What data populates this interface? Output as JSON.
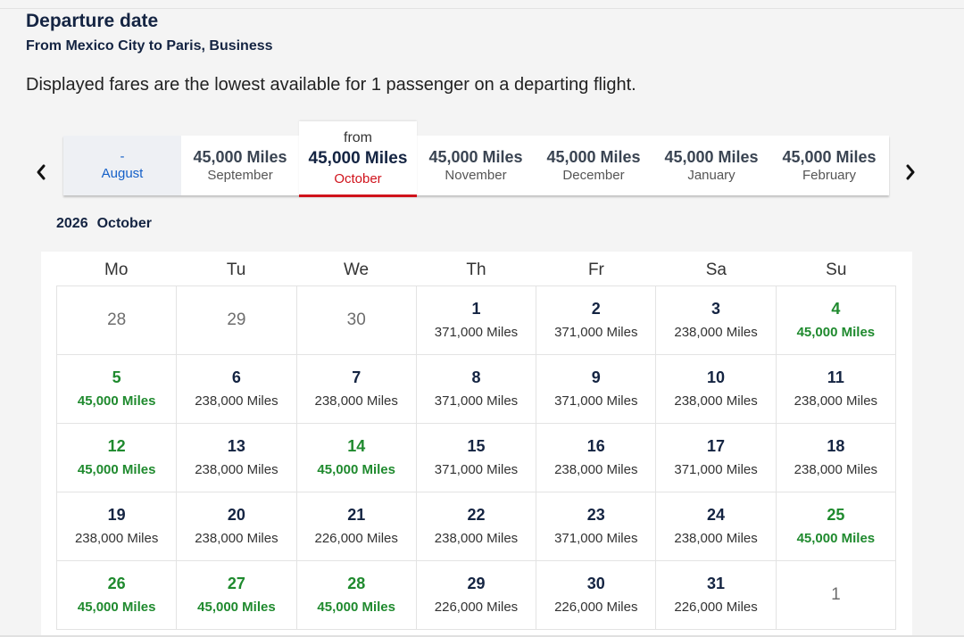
{
  "header": {
    "title": "Departure date",
    "subtitle": "From Mexico City to Paris, Business",
    "info": "Displayed fares are the lowest available for 1 passenger on a departing flight."
  },
  "icons": {
    "prev": "chevron-left-icon",
    "next": "chevron-right-icon"
  },
  "colors": {
    "accent_red": "#d0121b",
    "lowest_fare_green": "#1f8a2e",
    "navy": "#142442",
    "link_blue": "#1560c8"
  },
  "months": [
    {
      "price": "-",
      "name": "August",
      "state": "empty"
    },
    {
      "price": "45,000 Miles",
      "name": "September",
      "state": "normal"
    },
    {
      "prefix": "from",
      "price": "45,000 Miles",
      "name": "October",
      "state": "selected"
    },
    {
      "price": "45,000 Miles",
      "name": "November",
      "state": "normal"
    },
    {
      "price": "45,000 Miles",
      "name": "December",
      "state": "normal"
    },
    {
      "price": "45,000 Miles",
      "name": "January",
      "state": "normal"
    },
    {
      "price": "45,000 Miles",
      "name": "February",
      "state": "normal"
    }
  ],
  "calendar": {
    "year": "2026",
    "month": "October",
    "weekdays": [
      "Mo",
      "Tu",
      "We",
      "Th",
      "Fr",
      "Sa",
      "Su"
    ],
    "days": [
      {
        "day": "28",
        "fare": "",
        "type": "outside"
      },
      {
        "day": "29",
        "fare": "",
        "type": "outside"
      },
      {
        "day": "30",
        "fare": "",
        "type": "outside"
      },
      {
        "day": "1",
        "fare": "371,000 Miles",
        "type": "normal"
      },
      {
        "day": "2",
        "fare": "371,000 Miles",
        "type": "normal"
      },
      {
        "day": "3",
        "fare": "238,000 Miles",
        "type": "normal"
      },
      {
        "day": "4",
        "fare": "45,000 Miles",
        "type": "green"
      },
      {
        "day": "5",
        "fare": "45,000 Miles",
        "type": "green"
      },
      {
        "day": "6",
        "fare": "238,000 Miles",
        "type": "normal"
      },
      {
        "day": "7",
        "fare": "238,000 Miles",
        "type": "normal"
      },
      {
        "day": "8",
        "fare": "371,000 Miles",
        "type": "normal"
      },
      {
        "day": "9",
        "fare": "371,000 Miles",
        "type": "normal"
      },
      {
        "day": "10",
        "fare": "238,000 Miles",
        "type": "normal"
      },
      {
        "day": "11",
        "fare": "238,000 Miles",
        "type": "normal"
      },
      {
        "day": "12",
        "fare": "45,000 Miles",
        "type": "green"
      },
      {
        "day": "13",
        "fare": "238,000 Miles",
        "type": "normal"
      },
      {
        "day": "14",
        "fare": "45,000 Miles",
        "type": "green"
      },
      {
        "day": "15",
        "fare": "371,000 Miles",
        "type": "normal"
      },
      {
        "day": "16",
        "fare": "238,000 Miles",
        "type": "normal"
      },
      {
        "day": "17",
        "fare": "371,000 Miles",
        "type": "normal"
      },
      {
        "day": "18",
        "fare": "238,000 Miles",
        "type": "normal"
      },
      {
        "day": "19",
        "fare": "238,000 Miles",
        "type": "normal"
      },
      {
        "day": "20",
        "fare": "238,000 Miles",
        "type": "normal"
      },
      {
        "day": "21",
        "fare": "226,000 Miles",
        "type": "normal"
      },
      {
        "day": "22",
        "fare": "238,000 Miles",
        "type": "normal"
      },
      {
        "day": "23",
        "fare": "371,000 Miles",
        "type": "normal"
      },
      {
        "day": "24",
        "fare": "238,000 Miles",
        "type": "normal"
      },
      {
        "day": "25",
        "fare": "45,000 Miles",
        "type": "green"
      },
      {
        "day": "26",
        "fare": "45,000 Miles",
        "type": "green"
      },
      {
        "day": "27",
        "fare": "45,000 Miles",
        "type": "green"
      },
      {
        "day": "28",
        "fare": "45,000 Miles",
        "type": "green"
      },
      {
        "day": "29",
        "fare": "226,000 Miles",
        "type": "normal"
      },
      {
        "day": "30",
        "fare": "226,000 Miles",
        "type": "normal"
      },
      {
        "day": "31",
        "fare": "226,000 Miles",
        "type": "normal"
      },
      {
        "day": "1",
        "fare": "",
        "type": "outside"
      }
    ]
  }
}
